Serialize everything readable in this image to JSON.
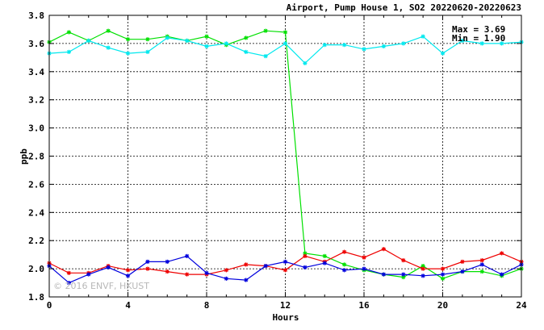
{
  "chart_data": {
    "type": "line",
    "title": "Airport, Pump House 1, SO2 20220620-20220623",
    "xlabel": "Hours",
    "ylabel": "ppb",
    "xlim": [
      0,
      24
    ],
    "ylim": [
      1.8,
      3.8
    ],
    "xticks": [
      0,
      4,
      8,
      12,
      16,
      20,
      24
    ],
    "yticks": [
      1.8,
      2.0,
      2.2,
      2.4,
      2.6,
      2.8,
      3.0,
      3.2,
      3.4,
      3.6,
      3.8
    ],
    "grid": true,
    "annotations": {
      "max": "Max = 3.69",
      "min": "Min = 1.90"
    },
    "watermark": "© 2016 ENVF, HKUST",
    "x": [
      0,
      1,
      2,
      3,
      4,
      5,
      6,
      7,
      8,
      9,
      10,
      11,
      12,
      13,
      14,
      15,
      16,
      17,
      18,
      19,
      20,
      21,
      22,
      23,
      24
    ],
    "series": [
      {
        "color": "#00e000",
        "values": [
          3.61,
          3.68,
          3.62,
          3.69,
          3.63,
          3.63,
          3.65,
          3.62,
          3.65,
          3.59,
          3.64,
          3.69,
          3.68,
          2.11,
          2.09,
          2.03,
          1.99,
          1.96,
          1.94,
          2.02,
          1.93,
          1.98,
          1.98,
          1.95,
          2.0
        ]
      },
      {
        "color": "#00e8ee",
        "values": [
          3.53,
          3.54,
          3.62,
          3.57,
          3.53,
          3.54,
          3.64,
          3.62,
          3.58,
          3.6,
          3.54,
          3.51,
          3.6,
          3.46,
          3.59,
          3.59,
          3.56,
          3.58,
          3.6,
          3.65,
          3.53,
          3.62,
          3.6,
          3.6,
          3.61
        ]
      },
      {
        "color": "#ee0000",
        "values": [
          2.04,
          1.97,
          1.97,
          2.02,
          1.99,
          2.0,
          1.98,
          1.96,
          1.96,
          1.99,
          2.03,
          2.02,
          1.99,
          2.09,
          2.05,
          2.12,
          2.08,
          2.14,
          2.06,
          2.0,
          2.0,
          2.05,
          2.06,
          2.11,
          2.05
        ]
      },
      {
        "color": "#0000dd",
        "values": [
          2.02,
          1.9,
          1.96,
          2.01,
          1.95,
          2.05,
          2.05,
          2.09,
          1.97,
          1.93,
          1.92,
          2.02,
          2.05,
          2.01,
          2.04,
          1.99,
          2.0,
          1.96,
          1.96,
          1.95,
          1.96,
          1.98,
          2.03,
          1.96,
          2.03
        ]
      }
    ]
  }
}
